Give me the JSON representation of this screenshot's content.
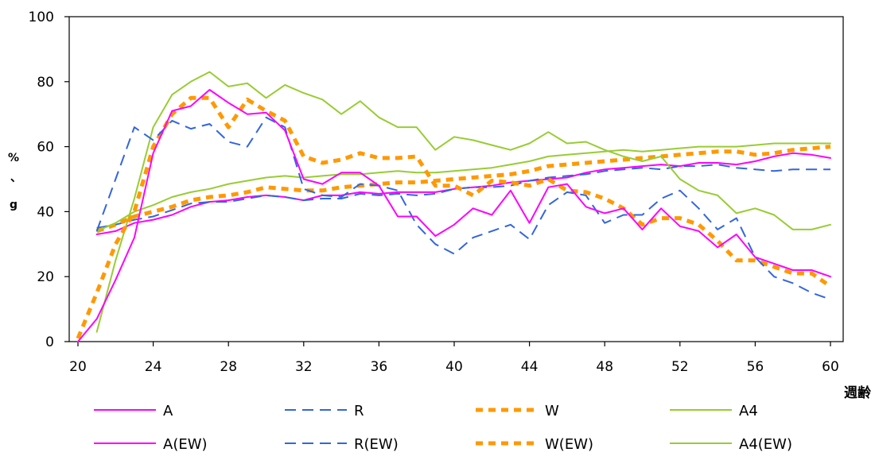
{
  "chart_data": {
    "type": "line",
    "xlabel": "週齢",
    "ylabel_chars": [
      "%",
      "、",
      "g"
    ],
    "xlim": [
      20,
      60
    ],
    "ylim": [
      0,
      100
    ],
    "xticks": [
      20,
      24,
      28,
      32,
      36,
      40,
      44,
      48,
      52,
      56,
      60
    ],
    "yticks": [
      0,
      20,
      40,
      60,
      80,
      100
    ],
    "grid": false,
    "legend_position": "bottom",
    "series": [
      {
        "name": "A",
        "color": "#ff00ff",
        "style": "solid",
        "x": [
          20,
          21,
          22,
          23,
          24,
          25,
          26,
          27,
          28,
          29,
          30,
          31,
          32,
          33,
          34,
          35,
          36,
          37,
          38,
          39,
          40,
          41,
          42,
          43,
          44,
          45,
          46,
          47,
          48,
          49,
          50,
          51,
          52,
          53,
          54,
          55,
          56,
          57,
          58,
          59,
          60
        ],
        "values": [
          0,
          7,
          19,
          32,
          58,
          71,
          72.5,
          77.5,
          73.5,
          70,
          70.5,
          65,
          50,
          48.5,
          52,
          52,
          48,
          38.5,
          38.5,
          32.5,
          36,
          41,
          39,
          46.5,
          36.5,
          47.5,
          48.5,
          41.5,
          39.5,
          41,
          34.5,
          41,
          35.5,
          34,
          29,
          33,
          26,
          24,
          22,
          22,
          20
        ]
      },
      {
        "name": "R",
        "color": "#3366dd",
        "style": "dash",
        "x": [
          21,
          22,
          23,
          24,
          25,
          26,
          27,
          28,
          29,
          30,
          31,
          32,
          33,
          34,
          35,
          36,
          37,
          38,
          39,
          40,
          41,
          42,
          43,
          44,
          45,
          46,
          47,
          48,
          49,
          50,
          51,
          52,
          53,
          54,
          55,
          56,
          57,
          58,
          59,
          60
        ],
        "values": [
          34,
          50,
          66,
          62,
          68,
          65.5,
          67,
          61.5,
          60,
          69,
          66,
          47,
          45,
          44.5,
          48.5,
          48,
          46.5,
          36,
          30,
          27,
          32,
          34,
          36,
          31.5,
          42,
          46,
          45,
          36.5,
          39,
          39,
          44,
          46.5,
          41,
          34.5,
          38,
          26,
          20,
          18,
          15,
          13
        ]
      },
      {
        "name": "W",
        "color": "#ff9900",
        "style": "dot",
        "x": [
          20,
          21,
          22,
          23,
          24,
          25,
          26,
          27,
          28,
          29,
          30,
          31,
          32,
          33,
          34,
          35,
          36,
          37,
          38,
          39,
          40,
          41,
          42,
          43,
          44,
          45,
          46,
          47,
          48,
          49,
          50,
          51,
          52,
          53,
          54,
          55,
          56,
          57,
          58,
          59,
          60
        ],
        "values": [
          1,
          15,
          30,
          40,
          60,
          70,
          75,
          75,
          66,
          74.5,
          71,
          68,
          57,
          55,
          56,
          58,
          56.5,
          56.5,
          57,
          48,
          48,
          45,
          49.5,
          49,
          48,
          50,
          46.5,
          46,
          44,
          41,
          36,
          38,
          38,
          36,
          31,
          25,
          25,
          23,
          21,
          21,
          17
        ]
      },
      {
        "name": "A4",
        "color": "#99cc33",
        "style": "solid",
        "x": [
          21,
          22,
          23,
          24,
          25,
          26,
          27,
          28,
          29,
          30,
          31,
          32,
          33,
          34,
          35,
          36,
          37,
          38,
          39,
          40,
          41,
          42,
          43,
          44,
          45,
          46,
          47,
          48,
          49,
          50,
          51,
          52,
          53,
          54,
          55,
          56,
          57,
          58,
          59,
          60
        ],
        "values": [
          3,
          25,
          44,
          66,
          76,
          80,
          83,
          78.5,
          79.5,
          75,
          79,
          76.5,
          74.5,
          70,
          74,
          69,
          66,
          66,
          59,
          63,
          62,
          60.5,
          59,
          61,
          64.5,
          61,
          61.5,
          59,
          57,
          55.5,
          57,
          50,
          46.5,
          45,
          39.5,
          41,
          39,
          34.5,
          34.5,
          36
        ]
      },
      {
        "name": "A(EW)",
        "color": "#ff00ff",
        "style": "solid",
        "x": [
          21,
          22,
          23,
          24,
          25,
          26,
          27,
          28,
          29,
          30,
          31,
          32,
          33,
          34,
          35,
          36,
          37,
          38,
          39,
          40,
          41,
          42,
          43,
          44,
          45,
          46,
          47,
          48,
          49,
          50,
          51,
          52,
          53,
          54,
          55,
          56,
          57,
          58,
          59,
          60
        ],
        "values": [
          33,
          34,
          36.5,
          37.5,
          39,
          41.5,
          43,
          43.5,
          44.5,
          45,
          44.5,
          43.5,
          45,
          45,
          46,
          45.5,
          46,
          46,
          46,
          47,
          47.5,
          48,
          49,
          49.5,
          50,
          50.5,
          52,
          53,
          53.5,
          54,
          54.5,
          54,
          55,
          55,
          54.5,
          55.5,
          57,
          58,
          57.5,
          56.5
        ]
      },
      {
        "name": "R(EW)",
        "color": "#3366dd",
        "style": "dash",
        "x": [
          21,
          22,
          23,
          24,
          25,
          26,
          27,
          28,
          29,
          30,
          31,
          32,
          33,
          34,
          35,
          36,
          37,
          38,
          39,
          40,
          41,
          42,
          43,
          44,
          45,
          46,
          47,
          48,
          49,
          50,
          51,
          52,
          53,
          54,
          55,
          56,
          57,
          58,
          59,
          60
        ],
        "values": [
          35,
          36,
          37.5,
          38.5,
          40.5,
          42.5,
          43,
          43,
          44,
          45,
          44.5,
          43.5,
          44,
          44,
          45.5,
          45,
          45.5,
          45,
          45.5,
          47,
          47.5,
          47.5,
          48,
          49.5,
          50.5,
          51,
          51.5,
          52.5,
          53,
          53.5,
          53,
          54,
          54,
          54.5,
          53.5,
          53,
          52.5,
          53,
          53,
          53
        ]
      },
      {
        "name": "W(EW)",
        "color": "#ff9900",
        "style": "dot",
        "x": [
          21,
          22,
          23,
          24,
          25,
          26,
          27,
          28,
          29,
          30,
          31,
          32,
          33,
          34,
          35,
          36,
          37,
          38,
          39,
          40,
          41,
          42,
          43,
          44,
          45,
          46,
          47,
          48,
          49,
          50,
          51,
          52,
          53,
          54,
          55,
          56,
          57,
          58,
          59,
          60
        ],
        "values": [
          34,
          36,
          38.5,
          40,
          41.5,
          43.5,
          44.5,
          45,
          46,
          47.5,
          47,
          46.5,
          46.5,
          47.5,
          48,
          48.5,
          49,
          49,
          49.5,
          50,
          50.5,
          51,
          51.5,
          52.5,
          54,
          54.5,
          55,
          55.5,
          56,
          56.5,
          57,
          57.5,
          58,
          58.5,
          58.5,
          57.5,
          58,
          59,
          59.5,
          60
        ]
      },
      {
        "name": "A4(EW)",
        "color": "#99cc33",
        "style": "solid",
        "x": [
          21,
          22,
          23,
          24,
          25,
          26,
          27,
          28,
          29,
          30,
          31,
          32,
          33,
          34,
          35,
          36,
          37,
          38,
          39,
          40,
          41,
          42,
          43,
          44,
          45,
          46,
          47,
          48,
          49,
          50,
          51,
          52,
          53,
          54,
          55,
          56,
          57,
          58,
          59,
          60
        ],
        "values": [
          34,
          36.5,
          40,
          42,
          44.5,
          46,
          47,
          48.5,
          49.5,
          50.5,
          51,
          50.5,
          51,
          51.5,
          51.5,
          52,
          52.5,
          52,
          52,
          52.5,
          53,
          53.5,
          54.5,
          55.5,
          57,
          57.5,
          58,
          58.5,
          59,
          58.5,
          59,
          59.5,
          60,
          60,
          60,
          60.5,
          61,
          61,
          61,
          61
        ]
      }
    ]
  }
}
